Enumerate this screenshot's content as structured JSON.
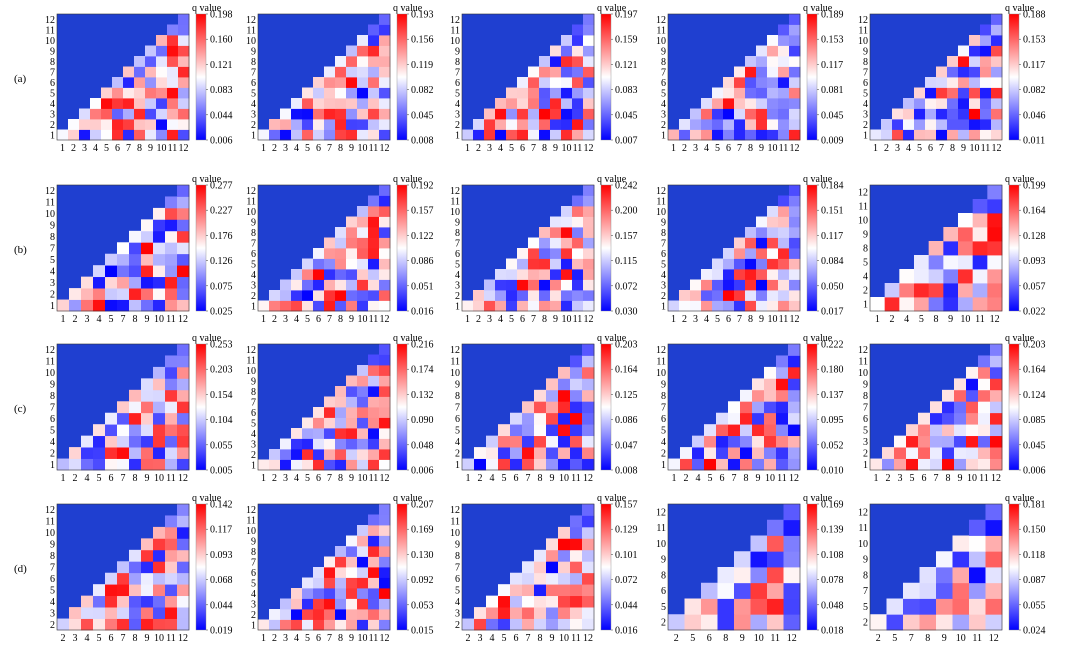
{
  "figure": {
    "colorbar_label": "q value",
    "colors": {
      "low": "#0000ff",
      "mid": "#ffffff",
      "high": "#ff0000",
      "background": "#1f3fd0"
    }
  },
  "chart_data": {
    "type": "heatmap",
    "layout": "4 rows x 5 columns of triangular heatmaps",
    "rows": [
      {
        "label": "(a)",
        "panels": [
          {
            "x_ticks": [
              "1",
              "2",
              "3",
              "4",
              "5",
              "6",
              "7",
              "8",
              "9",
              "10",
              "11",
              "12"
            ],
            "y_ticks": [
              "1",
              "2",
              "3",
              "4",
              "5",
              "6",
              "7",
              "8",
              "9",
              "10",
              "11",
              "12"
            ],
            "colorbar_ticks": [
              "0.198",
              "0.160",
              "0.121",
              "0.083",
              "0.044",
              "0.006"
            ],
            "range": [
              0.006,
              0.198
            ]
          },
          {
            "x_ticks": [
              "1",
              "2",
              "3",
              "4",
              "5",
              "6",
              "7",
              "8",
              "9",
              "10",
              "11",
              "12"
            ],
            "y_ticks": [
              "1",
              "2",
              "3",
              "4",
              "5",
              "6",
              "7",
              "8",
              "9",
              "10",
              "11",
              "12"
            ],
            "colorbar_ticks": [
              "0.193",
              "0.156",
              "0.119",
              "0.082",
              "0.045",
              "0.008"
            ],
            "range": [
              0.008,
              0.193
            ]
          },
          {
            "x_ticks": [
              "1",
              "2",
              "3",
              "4",
              "5",
              "6",
              "7",
              "8",
              "9",
              "10",
              "11",
              "12"
            ],
            "y_ticks": [
              "1",
              "2",
              "3",
              "4",
              "5",
              "6",
              "7",
              "8",
              "9",
              "10",
              "11",
              "12"
            ],
            "colorbar_ticks": [
              "0.197",
              "0.159",
              "0.121",
              "0.083",
              "0.045",
              "0.007"
            ],
            "range": [
              0.007,
              0.197
            ]
          },
          {
            "x_ticks": [
              "1",
              "2",
              "3",
              "4",
              "5",
              "6",
              "7",
              "8",
              "9",
              "10",
              "11",
              "12"
            ],
            "y_ticks": [
              "1",
              "2",
              "3",
              "4",
              "5",
              "6",
              "7",
              "8",
              "9",
              "10",
              "11",
              "12"
            ],
            "colorbar_ticks": [
              "0.189",
              "0.153",
              "0.117",
              "0.081",
              "0.045",
              "0.009"
            ],
            "range": [
              0.009,
              0.189
            ]
          },
          {
            "x_ticks": [
              "1",
              "2",
              "3",
              "4",
              "5",
              "6",
              "7",
              "8",
              "9",
              "10",
              "11",
              "12"
            ],
            "y_ticks": [
              "1",
              "2",
              "3",
              "4",
              "5",
              "6",
              "7",
              "8",
              "9",
              "10",
              "11",
              "12"
            ],
            "colorbar_ticks": [
              "0.188",
              "0.153",
              "0.117",
              "0.082",
              "0.046",
              "0.011"
            ],
            "range": [
              0.011,
              0.188
            ]
          }
        ]
      },
      {
        "label": "(b)",
        "panels": [
          {
            "x_ticks": [
              "1",
              "2",
              "3",
              "4",
              "5",
              "7",
              "8",
              "9",
              "10",
              "11",
              "12"
            ],
            "y_ticks": [
              "1",
              "2",
              "3",
              "4",
              "5",
              "7",
              "8",
              "9",
              "10",
              "11",
              "12"
            ],
            "colorbar_ticks": [
              "0.277",
              "0.227",
              "0.176",
              "0.126",
              "0.075",
              "0.025"
            ],
            "range": [
              0.025,
              0.277
            ]
          },
          {
            "x_ticks": [
              "1",
              "2",
              "3",
              "4",
              "5",
              "6",
              "7",
              "8",
              "9",
              "10",
              "11",
              "12"
            ],
            "y_ticks": [
              "1",
              "2",
              "3",
              "4",
              "5",
              "6",
              "7",
              "8",
              "9",
              "10",
              "11",
              "12"
            ],
            "colorbar_ticks": [
              "0.192",
              "0.157",
              "0.122",
              "0.086",
              "0.051",
              "0.016"
            ],
            "range": [
              0.016,
              0.192
            ]
          },
          {
            "x_ticks": [
              "1",
              "2",
              "3",
              "4",
              "5",
              "6",
              "7",
              "8",
              "9",
              "10",
              "11",
              "12"
            ],
            "y_ticks": [
              "1",
              "2",
              "3",
              "4",
              "5",
              "6",
              "7",
              "8",
              "9",
              "10",
              "11",
              "12"
            ],
            "colorbar_ticks": [
              "0.242",
              "0.200",
              "0.157",
              "0.115",
              "0.072",
              "0.030"
            ],
            "range": [
              0.03,
              0.242
            ]
          },
          {
            "x_ticks": [
              "1",
              "2",
              "3",
              "4",
              "5",
              "6",
              "7",
              "8",
              "9",
              "10",
              "11",
              "12"
            ],
            "y_ticks": [
              "1",
              "2",
              "3",
              "4",
              "5",
              "6",
              "7",
              "8",
              "9",
              "10",
              "11",
              "12"
            ],
            "colorbar_ticks": [
              "0.184",
              "0.151",
              "0.117",
              "0.084",
              "0.050",
              "0.017"
            ],
            "range": [
              0.017,
              0.184
            ]
          },
          {
            "x_ticks": [
              "1",
              "2",
              "4",
              "5",
              "8",
              "9",
              "10",
              "11",
              "12"
            ],
            "y_ticks": [
              "1",
              "2",
              "4",
              "5",
              "8",
              "9",
              "10",
              "11",
              "12"
            ],
            "colorbar_ticks": [
              "0.199",
              "0.164",
              "0.128",
              "0.093",
              "0.057",
              "0.022"
            ],
            "range": [
              0.022,
              0.199
            ]
          }
        ]
      },
      {
        "label": "(c)",
        "panels": [
          {
            "x_ticks": [
              "1",
              "2",
              "4",
              "5",
              "6",
              "7",
              "8",
              "9",
              "10",
              "11",
              "12"
            ],
            "y_ticks": [
              "1",
              "2",
              "4",
              "5",
              "6",
              "7",
              "8",
              "9",
              "10",
              "11",
              "12"
            ],
            "colorbar_ticks": [
              "0.253",
              "0.203",
              "0.154",
              "0.104",
              "0.055",
              "0.005"
            ],
            "range": [
              0.005,
              0.253
            ]
          },
          {
            "x_ticks": [
              "1",
              "2",
              "3",
              "4",
              "5",
              "6",
              "7",
              "8",
              "9",
              "10",
              "11",
              "12"
            ],
            "y_ticks": [
              "1",
              "2",
              "3",
              "4",
              "5",
              "6",
              "7",
              "8",
              "9",
              "10",
              "11",
              "12"
            ],
            "colorbar_ticks": [
              "0.216",
              "0.174",
              "0.132",
              "0.090",
              "0.048",
              "0.006"
            ],
            "range": [
              0.006,
              0.216
            ]
          },
          {
            "x_ticks": [
              "1",
              "2",
              "4",
              "5",
              "6",
              "7",
              "8",
              "9",
              "10",
              "11",
              "12"
            ],
            "y_ticks": [
              "1",
              "2",
              "4",
              "5",
              "6",
              "7",
              "8",
              "9",
              "10",
              "11",
              "12"
            ],
            "colorbar_ticks": [
              "0.203",
              "0.164",
              "0.125",
              "0.086",
              "0.047",
              "0.008"
            ],
            "range": [
              0.008,
              0.203
            ]
          },
          {
            "x_ticks": [
              "1",
              "2",
              "4",
              "5",
              "6",
              "7",
              "8",
              "9",
              "10",
              "11",
              "12"
            ],
            "y_ticks": [
              "1",
              "2",
              "4",
              "5",
              "6",
              "7",
              "8",
              "9",
              "10",
              "11",
              "12"
            ],
            "colorbar_ticks": [
              "0.222",
              "0.180",
              "0.137",
              "0.095",
              "0.052",
              "0.010"
            ],
            "range": [
              0.01,
              0.222
            ]
          },
          {
            "x_ticks": [
              "1",
              "2",
              "3",
              "5",
              "6",
              "7",
              "8",
              "9",
              "10",
              "11",
              "12"
            ],
            "y_ticks": [
              "1",
              "2",
              "3",
              "5",
              "6",
              "7",
              "8",
              "9",
              "10",
              "11",
              "12"
            ],
            "colorbar_ticks": [
              "0.203",
              "0.164",
              "0.124",
              "0.085",
              "0.045",
              "0.006"
            ],
            "range": [
              0.006,
              0.203
            ]
          }
        ]
      },
      {
        "label": "(d)",
        "panels": [
          {
            "x_ticks": [
              "2",
              "3",
              "4",
              "5",
              "6",
              "7",
              "8",
              "9",
              "10",
              "11",
              "12"
            ],
            "y_ticks": [
              "2",
              "3",
              "4",
              "5",
              "6",
              "7",
              "8",
              "9",
              "10",
              "11",
              "12"
            ],
            "colorbar_ticks": [
              "0.142",
              "0.117",
              "0.093",
              "0.068",
              "0.044",
              "0.019"
            ],
            "range": [
              0.019,
              0.142
            ]
          },
          {
            "x_ticks": [
              "1",
              "2",
              "3",
              "4",
              "5",
              "6",
              "7",
              "8",
              "9",
              "10",
              "11",
              "12"
            ],
            "y_ticks": [
              "1",
              "2",
              "3",
              "4",
              "5",
              "6",
              "7",
              "8",
              "9",
              "10",
              "11",
              "12"
            ],
            "colorbar_ticks": [
              "0.207",
              "0.169",
              "0.130",
              "0.092",
              "0.053",
              "0.015"
            ],
            "range": [
              0.015,
              0.207
            ]
          },
          {
            "x_ticks": [
              "2",
              "3",
              "4",
              "5",
              "6",
              "7",
              "8",
              "9",
              "10",
              "11",
              "12"
            ],
            "y_ticks": [
              "2",
              "3",
              "4",
              "5",
              "6",
              "7",
              "8",
              "9",
              "10",
              "11",
              "12"
            ],
            "colorbar_ticks": [
              "0.157",
              "0.129",
              "0.101",
              "0.072",
              "0.044",
              "0.016"
            ],
            "range": [
              0.016,
              0.157
            ]
          },
          {
            "x_ticks": [
              "2",
              "5",
              "6",
              "8",
              "9",
              "10",
              "11",
              "12"
            ],
            "y_ticks": [
              "2",
              "5",
              "6",
              "8",
              "9",
              "10",
              "11",
              "12"
            ],
            "colorbar_ticks": [
              "0.169",
              "0.139",
              "0.108",
              "0.078",
              "0.048",
              "0.018"
            ],
            "range": [
              0.018,
              0.169
            ]
          },
          {
            "x_ticks": [
              "2",
              "5",
              "7",
              "8",
              "9",
              "10",
              "11",
              "12"
            ],
            "y_ticks": [
              "2",
              "5",
              "7",
              "8",
              "9",
              "10",
              "11",
              "12"
            ],
            "colorbar_ticks": [
              "0.181",
              "0.150",
              "0.118",
              "0.087",
              "0.055",
              "0.024"
            ],
            "range": [
              0.024,
              0.181
            ]
          }
        ]
      }
    ]
  }
}
